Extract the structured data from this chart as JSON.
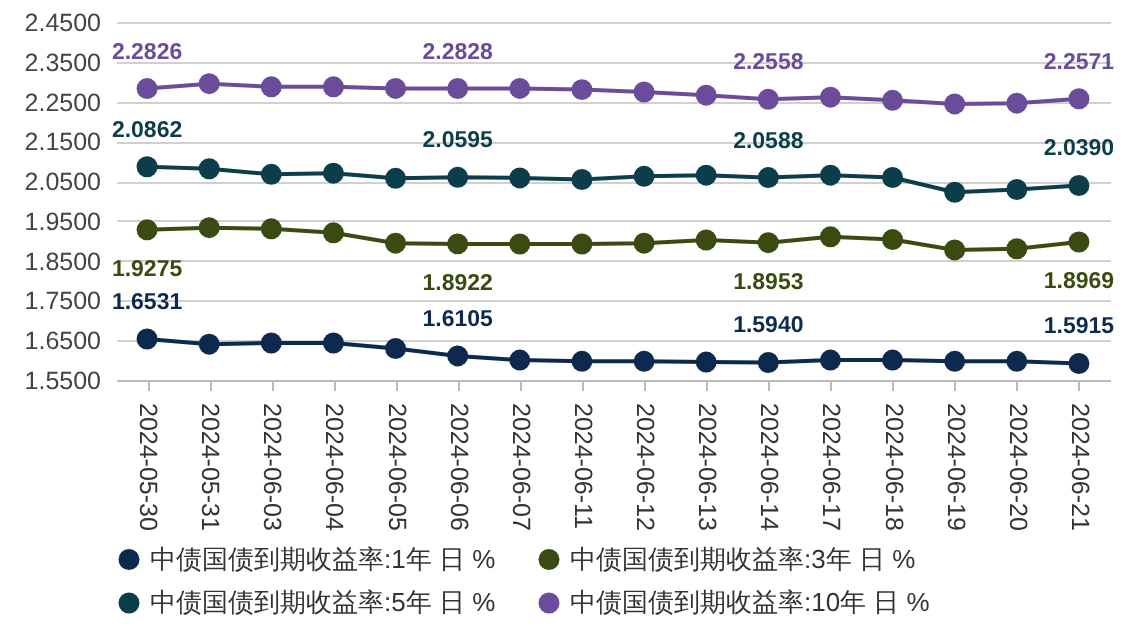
{
  "chart_data": {
    "type": "line",
    "categories": [
      "2024-05-30",
      "2024-05-31",
      "2024-06-03",
      "2024-06-04",
      "2024-06-05",
      "2024-06-06",
      "2024-06-07",
      "2024-06-11",
      "2024-06-12",
      "2024-06-13",
      "2024-06-14",
      "2024-06-17",
      "2024-06-18",
      "2024-06-19",
      "2024-06-20",
      "2024-06-21"
    ],
    "series": [
      {
        "name": "中债国债到期收益率:1年 日 %",
        "color": "#0d2a4e",
        "values": [
          1.6531,
          1.64,
          1.643,
          1.643,
          1.629,
          1.6105,
          1.6,
          1.597,
          1.597,
          1.595,
          1.594,
          1.6,
          1.6,
          1.597,
          1.597,
          1.5915
        ],
        "value_labels": [
          "1.6531",
          null,
          null,
          null,
          null,
          "1.6105",
          null,
          null,
          null,
          null,
          "1.5940",
          null,
          null,
          null,
          null,
          "1.5915"
        ]
      },
      {
        "name": "中债国债到期收益率:3年 日 %",
        "color": "#3b4a10",
        "values": [
          1.9275,
          1.933,
          1.93,
          1.92,
          1.894,
          1.8922,
          1.892,
          1.892,
          1.894,
          1.902,
          1.8953,
          1.91,
          1.903,
          1.877,
          1.88,
          1.8969
        ],
        "value_labels": [
          "1.9275",
          null,
          null,
          null,
          null,
          "1.8922",
          null,
          null,
          null,
          null,
          "1.8953",
          null,
          null,
          null,
          null,
          "1.8969"
        ]
      },
      {
        "name": "中债国债到期收益率:5年 日 %",
        "color": "#0b3d4a",
        "values": [
          2.0862,
          2.081,
          2.067,
          2.07,
          2.057,
          2.0595,
          2.058,
          2.054,
          2.062,
          2.065,
          2.0588,
          2.065,
          2.059,
          2.022,
          2.029,
          2.039
        ],
        "value_labels": [
          "2.0862",
          null,
          null,
          null,
          null,
          "2.0595",
          null,
          null,
          null,
          null,
          "2.0588",
          null,
          null,
          null,
          null,
          "2.0390"
        ]
      },
      {
        "name": "中债国债到期收益率:10年 日 %",
        "color": "#6b4c9a",
        "values": [
          2.2826,
          2.295,
          2.287,
          2.287,
          2.283,
          2.2828,
          2.283,
          2.28,
          2.274,
          2.266,
          2.2558,
          2.261,
          2.253,
          2.244,
          2.246,
          2.2571
        ],
        "value_labels": [
          "2.2826",
          null,
          null,
          null,
          null,
          "2.2828",
          null,
          null,
          null,
          null,
          "2.2558",
          null,
          null,
          null,
          null,
          "2.2571"
        ]
      }
    ],
    "ylim": [
      1.55,
      2.45
    ],
    "yticks": [
      {
        "value": 1.55,
        "label": "1.5500"
      },
      {
        "value": 1.65,
        "label": "1.6500"
      },
      {
        "value": 1.75,
        "label": "1.7500"
      },
      {
        "value": 1.85,
        "label": "1.8500"
      },
      {
        "value": 1.95,
        "label": "1.9500"
      },
      {
        "value": 2.05,
        "label": "2.0500"
      },
      {
        "value": 2.15,
        "label": "2.1500"
      },
      {
        "value": 2.25,
        "label": "2.2500"
      },
      {
        "value": 2.35,
        "label": "2.3500"
      },
      {
        "value": 2.45,
        "label": "2.4500"
      }
    ],
    "grid": "y",
    "legend": "bottom",
    "marker": "circle",
    "line_style": "solid"
  }
}
